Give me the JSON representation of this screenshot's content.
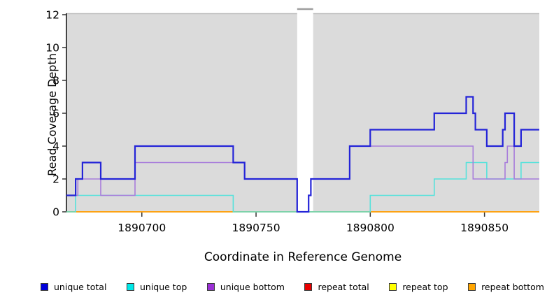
{
  "chart_data": {
    "type": "line",
    "subtype": "step-coverage",
    "title": "",
    "xlabel": "Coordinate in Reference Genome",
    "ylabel": "Read Coverage Depth",
    "xlim": [
      1890667,
      1890874
    ],
    "ylim": [
      0,
      12
    ],
    "x_ticks": [
      1890700,
      1890750,
      1890800,
      1890850
    ],
    "y_ticks": [
      0,
      2,
      4,
      6,
      8,
      10,
      12
    ],
    "grid": false,
    "legend_position": "bottom",
    "plot_bg": "#DBDBDB",
    "axis_color": "#333333",
    "gap_region": {
      "start": 1890768,
      "end": 1890775,
      "fill": "#FFFFFF",
      "note": "white uncovered band"
    },
    "series": [
      {
        "name": "unique total",
        "color": "#2424D8",
        "legend_color": "#0000DC",
        "width": 2.2,
        "z": 6,
        "steps": [
          [
            1890667,
            1
          ],
          [
            1890671,
            2
          ],
          [
            1890674,
            3
          ],
          [
            1890682,
            2
          ],
          [
            1890697,
            4
          ],
          [
            1890740,
            3
          ],
          [
            1890745,
            2
          ],
          [
            1890768,
            0
          ],
          [
            1890773,
            1
          ],
          [
            1890774,
            2
          ],
          [
            1890791,
            4
          ],
          [
            1890800,
            5
          ],
          [
            1890828,
            6
          ],
          [
            1890842,
            7
          ],
          [
            1890845,
            6
          ],
          [
            1890846,
            5
          ],
          [
            1890851,
            4
          ],
          [
            1890858,
            5
          ],
          [
            1890859,
            6
          ],
          [
            1890863,
            4
          ],
          [
            1890866,
            5
          ]
        ]
      },
      {
        "name": "unique top",
        "color": "#55E2DB",
        "legend_color": "#00E8E8",
        "width": 1.6,
        "z": 4,
        "steps": [
          [
            1890667,
            0
          ],
          [
            1890671,
            1
          ],
          [
            1890740,
            0
          ],
          [
            1890800,
            1
          ],
          [
            1890828,
            2
          ],
          [
            1890842,
            3
          ],
          [
            1890851,
            2
          ],
          [
            1890866,
            3
          ]
        ]
      },
      {
        "name": "unique bottom",
        "color": "#A87CDB",
        "legend_color": "#9B30D6",
        "width": 1.6,
        "z": 5,
        "steps": [
          [
            1890667,
            1
          ],
          [
            1890672,
            2
          ],
          [
            1890682,
            1
          ],
          [
            1890697,
            3
          ],
          [
            1890745,
            2
          ],
          [
            1890768,
            0
          ],
          [
            1890773,
            1
          ],
          [
            1890774,
            2
          ],
          [
            1890791,
            4
          ],
          [
            1890845,
            2
          ],
          [
            1890859,
            3
          ],
          [
            1890860,
            4
          ],
          [
            1890863,
            2
          ]
        ]
      },
      {
        "name": "repeat total",
        "color": "#E80000",
        "legend_color": "#E80000",
        "width": 1.5,
        "z": 1,
        "steps": [
          [
            1890667,
            0
          ]
        ]
      },
      {
        "name": "repeat top",
        "color": "#FFFF00",
        "legend_color": "#FFFF00",
        "width": 1.5,
        "z": 2,
        "steps": [
          [
            1890667,
            0
          ]
        ]
      },
      {
        "name": "repeat bottom",
        "color": "#FF9F0F",
        "legend_color": "#FFA500",
        "width": 1.8,
        "z": 3,
        "steps": [
          [
            1890667,
            0
          ]
        ]
      }
    ]
  }
}
